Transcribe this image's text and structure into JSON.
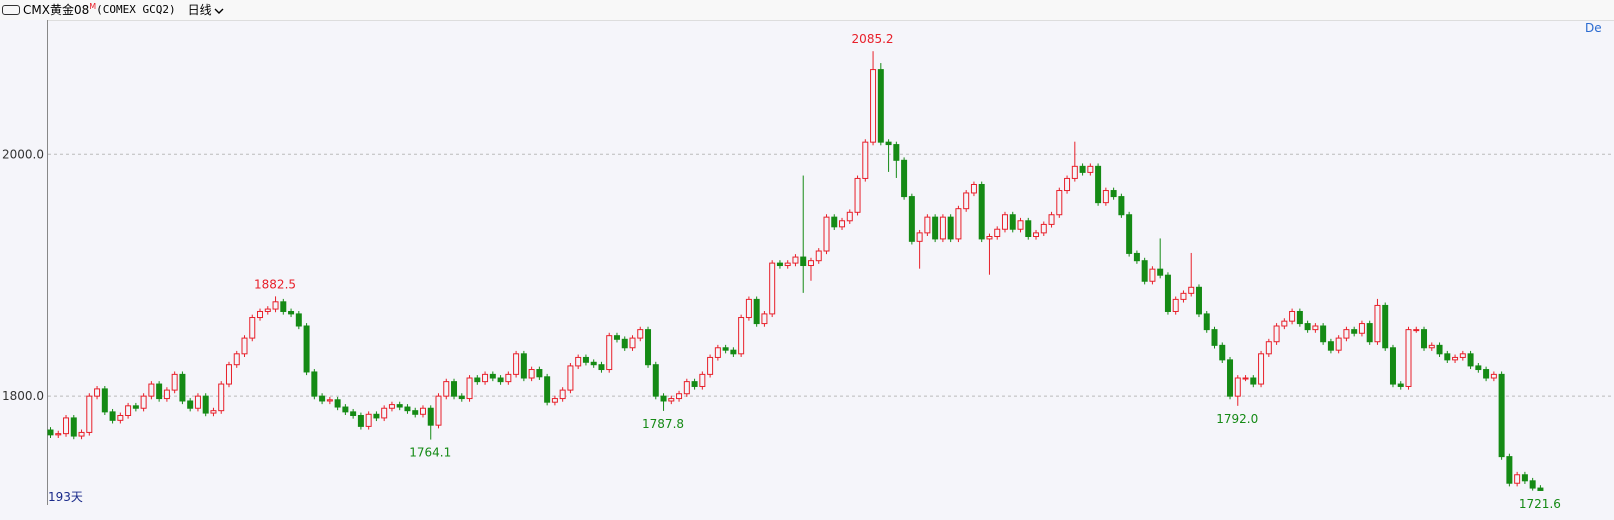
{
  "header": {
    "symbol": "CMX黄金08",
    "badge": "M",
    "code": "(COMEX GCQ2)",
    "period": "日线"
  },
  "chart_data": {
    "type": "candlestick",
    "days_label": "193天",
    "corner_label": "De",
    "up_color": "#e8202a",
    "down_color": "#158a15",
    "ylim": [
      1710,
      2111
    ],
    "yticks": [
      {
        "value": 2000,
        "label": "2000.0"
      },
      {
        "value": 1800,
        "label": "1800.0"
      }
    ],
    "grid": true,
    "annotations": [
      {
        "value": 1882.5,
        "label": "1882.5"
      },
      {
        "value": 1764.1,
        "label": "1764.1"
      },
      {
        "value": 1787.8,
        "label": "1787.8"
      },
      {
        "value": 2085.2,
        "label": "2085.2"
      },
      {
        "value": 1792,
        "label": "1792.0"
      },
      {
        "value": 1721.6,
        "label": "1721.6"
      }
    ],
    "candles": [
      [
        1772,
        1774.4,
        1765.4,
        1768
      ],
      [
        1768,
        1771.4,
        1765.4,
        1769
      ],
      [
        1769,
        1784.4,
        1766.4,
        1782
      ],
      [
        1782,
        1784.4,
        1764.4,
        1767
      ],
      [
        1767,
        1772.4,
        1764.4,
        1770
      ],
      [
        1770,
        1802.4,
        1767.4,
        1800
      ],
      [
        1800,
        1808.4,
        1797.4,
        1806
      ],
      [
        1806,
        1808.4,
        1784.4,
        1787
      ],
      [
        1787,
        1789.4,
        1777.4,
        1780
      ],
      [
        1780,
        1786.4,
        1777.4,
        1784
      ],
      [
        1784,
        1794.4,
        1781.4,
        1792
      ],
      [
        1792,
        1794.4,
        1787.4,
        1790
      ],
      [
        1790,
        1802.4,
        1787.4,
        1800
      ],
      [
        1800,
        1812.4,
        1797.4,
        1810
      ],
      [
        1810,
        1812.4,
        1795.4,
        1798
      ],
      [
        1798,
        1807.4,
        1795.4,
        1805
      ],
      [
        1805,
        1820.4,
        1802.4,
        1818
      ],
      [
        1818,
        1820.4,
        1793.4,
        1796
      ],
      [
        1796,
        1798.4,
        1787.4,
        1790
      ],
      [
        1790,
        1802.4,
        1787.4,
        1800
      ],
      [
        1800,
        1802.4,
        1783.4,
        1786
      ],
      [
        1786,
        1790.4,
        1783.4,
        1788
      ],
      [
        1788,
        1812.4,
        1785.4,
        1810
      ],
      [
        1810,
        1828.4,
        1807.4,
        1826
      ],
      [
        1826,
        1837.4,
        1823.4,
        1835
      ],
      [
        1835,
        1850.4,
        1832.4,
        1848
      ],
      [
        1848,
        1867.4,
        1845.4,
        1865
      ],
      [
        1865,
        1872.4,
        1862.4,
        1870
      ],
      [
        1870,
        1874.4,
        1867.4,
        1872
      ],
      [
        1872,
        1882.5,
        1869.4,
        1878
      ],
      [
        1878,
        1880.4,
        1867.4,
        1870
      ],
      [
        1870,
        1872.4,
        1865.4,
        1868
      ],
      [
        1868,
        1870.4,
        1855.4,
        1858
      ],
      [
        1858,
        1860.4,
        1817.4,
        1820
      ],
      [
        1820,
        1822.4,
        1797.4,
        1800
      ],
      [
        1800,
        1802.4,
        1793.4,
        1796
      ],
      [
        1796,
        1799.4,
        1793.4,
        1797
      ],
      [
        1797,
        1799.4,
        1788.4,
        1791
      ],
      [
        1791,
        1793.4,
        1784.4,
        1787
      ],
      [
        1787,
        1789.4,
        1781.4,
        1784
      ],
      [
        1784,
        1786.4,
        1772.4,
        1775
      ],
      [
        1775,
        1787.4,
        1772.4,
        1785
      ],
      [
        1785,
        1787.4,
        1779.4,
        1782
      ],
      [
        1782,
        1792.4,
        1779.4,
        1790
      ],
      [
        1790,
        1795.4,
        1787.4,
        1793
      ],
      [
        1793,
        1795.4,
        1788.4,
        1791
      ],
      [
        1791,
        1793.4,
        1785.4,
        1788
      ],
      [
        1788,
        1790.4,
        1782.4,
        1785
      ],
      [
        1785,
        1792.4,
        1782.4,
        1790
      ],
      [
        1790,
        1792.4,
        1764.1,
        1776
      ],
      [
        1776,
        1802.4,
        1773.4,
        1800
      ],
      [
        1800,
        1814.4,
        1797.4,
        1812
      ],
      [
        1812,
        1814.4,
        1797.4,
        1800
      ],
      [
        1800,
        1802.4,
        1795.4,
        1798
      ],
      [
        1798,
        1817.4,
        1795.4,
        1815
      ],
      [
        1815,
        1817.4,
        1809.4,
        1812
      ],
      [
        1812,
        1820.4,
        1809.4,
        1818
      ],
      [
        1818,
        1820.4,
        1812.4,
        1815
      ],
      [
        1815,
        1817.4,
        1809.4,
        1812
      ],
      [
        1812,
        1820.4,
        1809.4,
        1818
      ],
      [
        1818,
        1837.4,
        1815.4,
        1835
      ],
      [
        1835,
        1837.4,
        1812.4,
        1815
      ],
      [
        1815,
        1824.4,
        1812.4,
        1822
      ],
      [
        1822,
        1824.4,
        1813.4,
        1816
      ],
      [
        1816,
        1818.4,
        1792.4,
        1795
      ],
      [
        1795,
        1800.4,
        1792.4,
        1798
      ],
      [
        1798,
        1807.4,
        1795.4,
        1805
      ],
      [
        1805,
        1827.4,
        1802.4,
        1825
      ],
      [
        1825,
        1834.4,
        1822.4,
        1832
      ],
      [
        1832,
        1834.4,
        1825.4,
        1828
      ],
      [
        1828,
        1830.4,
        1823.4,
        1826
      ],
      [
        1826,
        1828.4,
        1819.4,
        1822
      ],
      [
        1822,
        1852.4,
        1819.4,
        1850
      ],
      [
        1850,
        1852.4,
        1844.4,
        1847
      ],
      [
        1847,
        1849.4,
        1837.4,
        1840
      ],
      [
        1840,
        1850.4,
        1837.4,
        1848
      ],
      [
        1848,
        1857.4,
        1845.4,
        1855
      ],
      [
        1855,
        1857.4,
        1823.4,
        1826
      ],
      [
        1826,
        1828.4,
        1797.4,
        1800
      ],
      [
        1800,
        1802.4,
        1787.8,
        1796
      ],
      [
        1796,
        1800.4,
        1793.4,
        1798
      ],
      [
        1798,
        1804.4,
        1795.4,
        1802
      ],
      [
        1802,
        1814.4,
        1799.4,
        1812
      ],
      [
        1812,
        1814.4,
        1805.4,
        1808
      ],
      [
        1808,
        1820.4,
        1805.4,
        1818
      ],
      [
        1818,
        1834.4,
        1815.4,
        1832
      ],
      [
        1832,
        1842.4,
        1829.4,
        1840
      ],
      [
        1840,
        1842.4,
        1835.4,
        1838
      ],
      [
        1838,
        1840.4,
        1832.4,
        1835
      ],
      [
        1835,
        1867.4,
        1832.4,
        1865
      ],
      [
        1865,
        1882.4,
        1862.4,
        1880
      ],
      [
        1880,
        1882.4,
        1857.4,
        1860
      ],
      [
        1860,
        1870.4,
        1857.4,
        1868
      ],
      [
        1868,
        1912.4,
        1865.4,
        1910
      ],
      [
        1910,
        1912.4,
        1905.4,
        1908
      ],
      [
        1908,
        1912.4,
        1905.4,
        1910
      ],
      [
        1910,
        1917.4,
        1907.4,
        1915
      ],
      [
        1915,
        1982.4,
        1885.4,
        1908
      ],
      [
        1908,
        1914.4,
        1895.4,
        1912
      ],
      [
        1912,
        1922.4,
        1909.4,
        1920
      ],
      [
        1920,
        1950.4,
        1917.4,
        1948
      ],
      [
        1948,
        1950.4,
        1937.4,
        1940
      ],
      [
        1940,
        1947.4,
        1937.4,
        1945
      ],
      [
        1945,
        1954.4,
        1942.4,
        1952
      ],
      [
        1952,
        1982.4,
        1949.4,
        1980
      ],
      [
        1980,
        2012.4,
        1977.4,
        2010
      ],
      [
        2010,
        2085.2,
        2007.4,
        2070
      ],
      [
        2070,
        2075.4,
        2007.4,
        2010
      ],
      [
        2010,
        2012.4,
        1985.4,
        2008
      ],
      [
        2008,
        2010.4,
        1980.4,
        1995
      ],
      [
        1995,
        1997.4,
        1962.4,
        1965
      ],
      [
        1965,
        1967.4,
        1925.4,
        1928
      ],
      [
        1928,
        1937.4,
        1905.4,
        1935
      ],
      [
        1935,
        1950.4,
        1932.4,
        1948
      ],
      [
        1948,
        1950.4,
        1927.4,
        1930
      ],
      [
        1930,
        1950.4,
        1927.4,
        1948
      ],
      [
        1948,
        1950.4,
        1927.4,
        1930
      ],
      [
        1930,
        1957.4,
        1927.4,
        1955
      ],
      [
        1955,
        1970.4,
        1952.4,
        1968
      ],
      [
        1968,
        1977.4,
        1965.4,
        1975
      ],
      [
        1975,
        1977.4,
        1927.4,
        1930
      ],
      [
        1930,
        1934.4,
        1900.4,
        1932
      ],
      [
        1932,
        1940.4,
        1929.4,
        1938
      ],
      [
        1938,
        1952.4,
        1935.4,
        1950
      ],
      [
        1950,
        1952.4,
        1935.4,
        1938
      ],
      [
        1938,
        1947.4,
        1935.4,
        1945
      ],
      [
        1945,
        1947.4,
        1929.4,
        1932
      ],
      [
        1932,
        1937.4,
        1929.4,
        1935
      ],
      [
        1935,
        1944.4,
        1932.4,
        1942
      ],
      [
        1942,
        1952.4,
        1939.4,
        1950
      ],
      [
        1950,
        1972.4,
        1947.4,
        1970
      ],
      [
        1970,
        1982.4,
        1967.4,
        1980
      ],
      [
        1980,
        2010.4,
        1977.4,
        1990
      ],
      [
        1990,
        1992.4,
        1982.4,
        1985
      ],
      [
        1985,
        1992.4,
        1982.4,
        1990
      ],
      [
        1990,
        1992.4,
        1957.4,
        1960
      ],
      [
        1960,
        1972.4,
        1957.4,
        1970
      ],
      [
        1970,
        1972.4,
        1962.4,
        1965
      ],
      [
        1965,
        1967.4,
        1947.4,
        1950
      ],
      [
        1950,
        1952.4,
        1915.4,
        1918
      ],
      [
        1918,
        1920.4,
        1909.4,
        1912
      ],
      [
        1912,
        1914.4,
        1892.4,
        1895
      ],
      [
        1895,
        1907.4,
        1892.4,
        1905
      ],
      [
        1905,
        1930.4,
        1897.4,
        1900
      ],
      [
        1900,
        1902.4,
        1867.4,
        1870
      ],
      [
        1870,
        1882.4,
        1867.4,
        1880
      ],
      [
        1880,
        1887.4,
        1877.4,
        1885
      ],
      [
        1885,
        1918.4,
        1882.4,
        1890
      ],
      [
        1890,
        1892.4,
        1865.4,
        1868
      ],
      [
        1868,
        1870.4,
        1852.4,
        1855
      ],
      [
        1855,
        1857.4,
        1839.4,
        1842
      ],
      [
        1842,
        1844.4,
        1827.4,
        1830
      ],
      [
        1830,
        1832.4,
        1797.4,
        1800
      ],
      [
        1800,
        1817.4,
        1792,
        1815
      ],
      [
        1815,
        1817.4,
        1812.4,
        1815
      ],
      [
        1815,
        1817.4,
        1807.4,
        1810
      ],
      [
        1810,
        1837.4,
        1807.4,
        1835
      ],
      [
        1835,
        1847.4,
        1832.4,
        1845
      ],
      [
        1845,
        1860.4,
        1842.4,
        1858
      ],
      [
        1858,
        1864.4,
        1855.4,
        1862
      ],
      [
        1862,
        1872.4,
        1859.4,
        1870
      ],
      [
        1870,
        1872.4,
        1857.4,
        1860
      ],
      [
        1860,
        1862.4,
        1852.4,
        1855
      ],
      [
        1855,
        1860.4,
        1852.4,
        1858
      ],
      [
        1858,
        1860.4,
        1842.4,
        1845
      ],
      [
        1845,
        1847.4,
        1835.4,
        1838
      ],
      [
        1838,
        1850.4,
        1835.4,
        1848
      ],
      [
        1848,
        1857.4,
        1845.4,
        1855
      ],
      [
        1855,
        1857.4,
        1849.4,
        1852
      ],
      [
        1852,
        1862.4,
        1849.4,
        1860
      ],
      [
        1860,
        1862.4,
        1842.4,
        1845
      ],
      [
        1845,
        1880.4,
        1842.4,
        1875
      ],
      [
        1875,
        1877.4,
        1837.4,
        1840
      ],
      [
        1840,
        1842.4,
        1807.4,
        1810
      ],
      [
        1810,
        1812.4,
        1805.4,
        1808
      ],
      [
        1808,
        1857.4,
        1805.4,
        1855
      ],
      [
        1855,
        1857.4,
        1852.4,
        1855
      ],
      [
        1855,
        1857.4,
        1837.4,
        1840
      ],
      [
        1840,
        1844.4,
        1837.4,
        1842
      ],
      [
        1842,
        1844.4,
        1832.4,
        1835
      ],
      [
        1835,
        1837.4,
        1827.4,
        1830
      ],
      [
        1830,
        1834.4,
        1827.4,
        1832
      ],
      [
        1832,
        1837.4,
        1829.4,
        1835
      ],
      [
        1835,
        1837.4,
        1822.4,
        1825
      ],
      [
        1825,
        1827.4,
        1819.4,
        1822
      ],
      [
        1822,
        1824.4,
        1812.4,
        1815
      ],
      [
        1815,
        1820.4,
        1812.4,
        1818
      ],
      [
        1818,
        1820.4,
        1747.4,
        1750
      ],
      [
        1750,
        1752.4,
        1725.4,
        1728
      ],
      [
        1728,
        1737.4,
        1725.4,
        1735
      ],
      [
        1735,
        1737.4,
        1727.4,
        1730
      ],
      [
        1730,
        1732.4,
        1721.9,
        1724
      ],
      [
        1724,
        1726.4,
        1721.6,
        1722
      ]
    ]
  }
}
